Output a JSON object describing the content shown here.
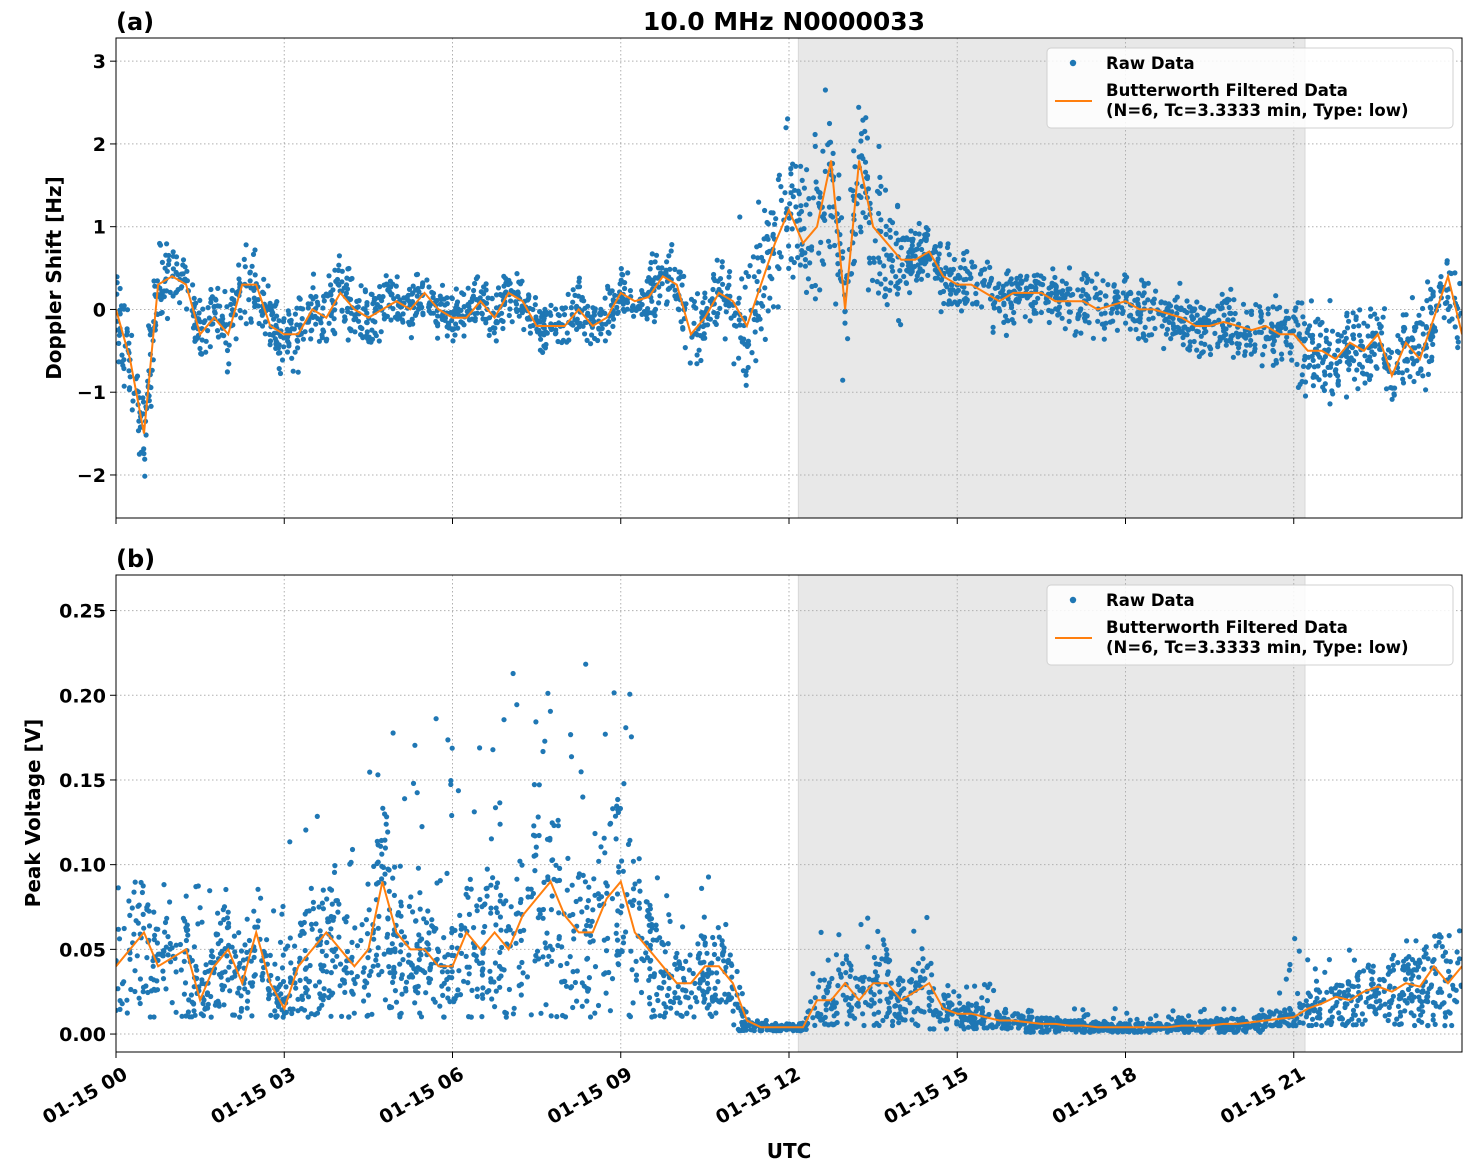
{
  "chart_data": [
    {
      "panel_label": "(a)",
      "title": "10.0 MHz N0000033",
      "type": "scatter+line",
      "ylabel": "Doppler Shift [Hz]",
      "xlabel": "",
      "ylim": [
        -2.52,
        3.28
      ],
      "xlim": [
        "01-15 00:00",
        "01-16 00:00"
      ],
      "yticks": [
        -2,
        -1,
        0,
        1,
        2,
        3
      ],
      "ytick_labels": [
        "−2",
        "−1",
        "0",
        "1",
        "2",
        "3"
      ],
      "xtick_labels": [
        "",
        "",
        "",
        "",
        "",
        "",
        "",
        ""
      ],
      "grid": true,
      "legend_position": "top-right",
      "shaded_interval": [
        "12:10",
        "21:12"
      ],
      "colors": {
        "raw": "#1f77b4",
        "filtered": "#ff7f0e",
        "shade": "#e8e8e8"
      },
      "legend": {
        "raw": "Raw Data",
        "filtered_line1": "Butterworth Filtered Data",
        "filtered_line2": "(N=6, Tc=3.3333 min, Type: low)"
      },
      "filtered": {
        "x_step": "15 min",
        "values": [
          0,
          -0.6,
          -1.5,
          0.3,
          0.4,
          0.3,
          -0.3,
          -0.1,
          -0.3,
          0.3,
          0.3,
          -0.2,
          -0.3,
          -0.3,
          0,
          -0.1,
          0.2,
          0,
          -0.1,
          0,
          0.1,
          0,
          0.2,
          0,
          -0.1,
          -0.1,
          0.1,
          -0.1,
          0.2,
          0.1,
          -0.2,
          -0.2,
          -0.2,
          0,
          -0.2,
          -0.1,
          0.2,
          0.1,
          0.15,
          0.4,
          0.3,
          -0.3,
          -0.1,
          0.2,
          0.1,
          -0.2,
          0.3,
          0.8,
          1.2,
          0.8,
          1.0,
          1.8,
          0.0,
          1.8,
          1.0,
          0.8,
          0.6,
          0.6,
          0.7,
          0.4,
          0.3,
          0.3,
          0.2,
          0.1,
          0.2,
          0.2,
          0.2,
          0.1,
          0.1,
          0.1,
          0,
          0.05,
          0.1,
          0,
          0,
          -0.05,
          -0.1,
          -0.2,
          -0.2,
          -0.15,
          -0.2,
          -0.25,
          -0.2,
          -0.3,
          -0.3,
          -0.5,
          -0.5,
          -0.6,
          -0.4,
          -0.5,
          -0.3,
          -0.8,
          -0.4,
          -0.6,
          -0.1,
          0.4,
          -0.3
        ]
      },
      "raw_spread": [
        {
          "from": "00:00",
          "to": "01:00",
          "spread": 0.5
        },
        {
          "from": "01:00",
          "to": "05:00",
          "spread": 0.35
        },
        {
          "from": "05:00",
          "to": "09:30",
          "spread": 0.25
        },
        {
          "from": "09:30",
          "to": "11:00",
          "spread": 0.35
        },
        {
          "from": "11:00",
          "to": "14:00",
          "spread": 0.75
        },
        {
          "from": "14:00",
          "to": "21:00",
          "spread": 0.3
        },
        {
          "from": "21:00",
          "to": "24:00",
          "spread": 0.45
        }
      ]
    },
    {
      "panel_label": "(b)",
      "type": "scatter+line",
      "ylabel": "Peak Voltage [V]",
      "xlabel": "UTC",
      "ylim": [
        -0.0106,
        0.271
      ],
      "xlim": [
        "01-15 00:00",
        "01-16 00:00"
      ],
      "yticks": [
        0,
        0.05,
        0.1,
        0.15,
        0.2,
        0.25
      ],
      "ytick_labels": [
        "0.00",
        "0.05",
        "0.10",
        "0.15",
        "0.20",
        "0.25"
      ],
      "xticks": [
        0,
        3,
        6,
        9,
        12,
        15,
        18,
        21
      ],
      "xtick_labels": [
        "01-15 00",
        "01-15 03",
        "01-15 06",
        "01-15 09",
        "01-15 12",
        "01-15 15",
        "01-15 18",
        "01-15 21"
      ],
      "grid": true,
      "legend_position": "top-right",
      "shaded_interval": [
        "12:10",
        "21:12"
      ],
      "colors": {
        "raw": "#1f77b4",
        "filtered": "#ff7f0e",
        "shade": "#e8e8e8"
      },
      "legend": {
        "raw": "Raw Data",
        "filtered_line1": "Butterworth Filtered Data",
        "filtered_line2": "(N=6, Tc=3.3333 min, Type: low)"
      },
      "filtered": {
        "x_step": "15 min",
        "values": [
          0.04,
          0.05,
          0.06,
          0.04,
          0.045,
          0.05,
          0.02,
          0.04,
          0.05,
          0.03,
          0.06,
          0.03,
          0.015,
          0.04,
          0.05,
          0.06,
          0.05,
          0.04,
          0.05,
          0.09,
          0.06,
          0.05,
          0.05,
          0.04,
          0.04,
          0.06,
          0.05,
          0.06,
          0.05,
          0.07,
          0.08,
          0.09,
          0.07,
          0.06,
          0.06,
          0.08,
          0.09,
          0.06,
          0.05,
          0.04,
          0.03,
          0.03,
          0.04,
          0.04,
          0.03,
          0.008,
          0.004,
          0.004,
          0.004,
          0.004,
          0.02,
          0.02,
          0.03,
          0.02,
          0.03,
          0.03,
          0.02,
          0.025,
          0.03,
          0.015,
          0.012,
          0.012,
          0.01,
          0.008,
          0.008,
          0.007,
          0.006,
          0.006,
          0.005,
          0.005,
          0.004,
          0.004,
          0.004,
          0.004,
          0.004,
          0.004,
          0.005,
          0.005,
          0.005,
          0.006,
          0.006,
          0.007,
          0.008,
          0.009,
          0.01,
          0.015,
          0.018,
          0.022,
          0.02,
          0.025,
          0.028,
          0.025,
          0.03,
          0.028,
          0.04,
          0.03,
          0.04
        ]
      },
      "raw_range": [
        {
          "from": "00:00",
          "to": "03:00",
          "lo": 0.01,
          "hi": 0.1
        },
        {
          "from": "03:00",
          "to": "04:30",
          "lo": 0.01,
          "hi": 0.13
        },
        {
          "from": "04:30",
          "to": "07:00",
          "lo": 0.01,
          "hi": 0.19
        },
        {
          "from": "07:00",
          "to": "09:30",
          "lo": 0.01,
          "hi": 0.22
        },
        {
          "from": "09:30",
          "to": "11:00",
          "lo": 0.01,
          "hi": 0.1
        },
        {
          "from": "11:00",
          "to": "12:20",
          "lo": 0.002,
          "hi": 0.008
        },
        {
          "from": "12:20",
          "to": "14:30",
          "lo": 0.005,
          "hi": 0.07
        },
        {
          "from": "14:30",
          "to": "16:00",
          "lo": 0.003,
          "hi": 0.03
        },
        {
          "from": "16:00",
          "to": "20:30",
          "lo": 0.001,
          "hi": 0.015
        },
        {
          "from": "20:30",
          "to": "24:00",
          "lo": 0.005,
          "hi": 0.06
        }
      ]
    }
  ]
}
